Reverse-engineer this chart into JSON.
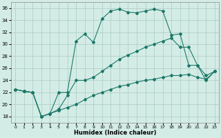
{
  "bg_color": "#d4ece6",
  "grid_color": "#aed0c8",
  "line_color": "#1a7868",
  "xlabel": "Humidex (Indice chaleur)",
  "xlim": [
    -0.5,
    23.5
  ],
  "ylim": [
    17,
    37
  ],
  "xticks": [
    0,
    1,
    2,
    3,
    4,
    5,
    6,
    7,
    8,
    9,
    10,
    11,
    12,
    13,
    14,
    15,
    16,
    17,
    18,
    19,
    20,
    21,
    22,
    23
  ],
  "yticks": [
    18,
    20,
    22,
    24,
    26,
    28,
    30,
    32,
    34,
    36
  ],
  "top_y": [
    22.5,
    22.2,
    22.0,
    18.0,
    18.5,
    22.0,
    22.0,
    30.5,
    31.7,
    30.3,
    34.2,
    35.5,
    35.8,
    35.3,
    35.2,
    35.5,
    35.8,
    35.5,
    31.5,
    31.7,
    26.5,
    26.5,
    24.8,
    25.5
  ],
  "mid_y": [
    22.5,
    22.2,
    22.0,
    18.0,
    18.5,
    19.2,
    21.5,
    24.0,
    24.0,
    24.5,
    25.5,
    26.5,
    27.5,
    28.2,
    28.8,
    29.5,
    30.0,
    30.5,
    31.0,
    29.5,
    29.5,
    26.5,
    24.0,
    25.5
  ],
  "bot_y": [
    22.5,
    22.2,
    22.0,
    18.0,
    18.5,
    19.0,
    19.5,
    20.0,
    20.8,
    21.5,
    22.0,
    22.5,
    23.0,
    23.3,
    23.7,
    24.0,
    24.2,
    24.5,
    24.8,
    24.8,
    25.0,
    24.5,
    24.2,
    25.5
  ]
}
